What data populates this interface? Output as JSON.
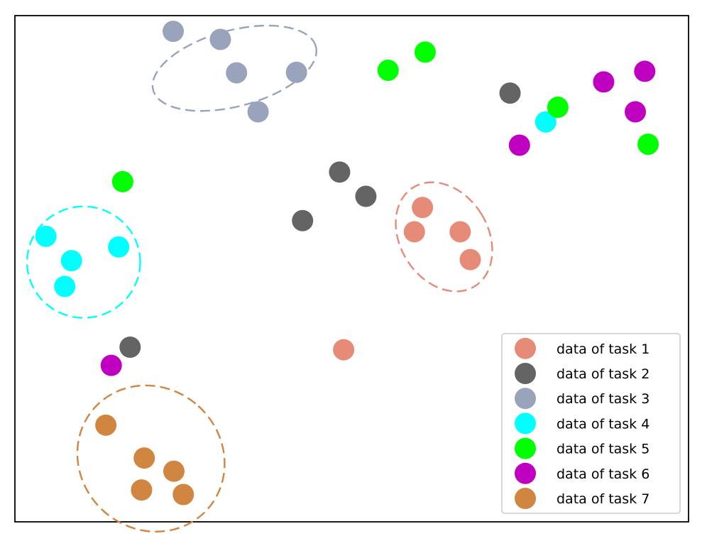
{
  "chart_data": {
    "type": "scatter",
    "title": "",
    "xlabel": "",
    "ylabel": "",
    "xlim": [
      0,
      100
    ],
    "ylim": [
      0,
      100
    ],
    "grid": false,
    "axis_ticks": false,
    "legend_position": "lower-right",
    "series": [
      {
        "name": "data of task 1",
        "color": "#e58b78",
        "points": [
          [
            60.5,
            62.1
          ],
          [
            59.3,
            57.3
          ],
          [
            66.1,
            57.3
          ],
          [
            67.6,
            51.8
          ],
          [
            48.8,
            34.0
          ]
        ]
      },
      {
        "name": "data of task 2",
        "color": "#646464",
        "points": [
          [
            73.5,
            84.7
          ],
          [
            48.2,
            69.1
          ],
          [
            52.1,
            64.3
          ],
          [
            42.7,
            59.5
          ],
          [
            17.1,
            34.5
          ]
        ]
      },
      {
        "name": "data of task 3",
        "color": "#9aa3bc",
        "points": [
          [
            23.5,
            96.9
          ],
          [
            30.5,
            95.3
          ],
          [
            32.9,
            88.7
          ],
          [
            41.8,
            88.8
          ],
          [
            36.1,
            81.0
          ]
        ]
      },
      {
        "name": "data of task 4",
        "color": "#00ffff",
        "points": [
          [
            78.8,
            79.0
          ],
          [
            4.6,
            56.4
          ],
          [
            15.4,
            54.3
          ],
          [
            8.4,
            51.6
          ],
          [
            7.4,
            46.5
          ]
        ]
      },
      {
        "name": "data of task 5",
        "color": "#00ff00",
        "points": [
          [
            60.9,
            92.8
          ],
          [
            55.4,
            89.2
          ],
          [
            80.6,
            81.9
          ],
          [
            94.0,
            74.6
          ],
          [
            16.0,
            67.2
          ]
        ]
      },
      {
        "name": "data of task 6",
        "color": "#c000c0",
        "points": [
          [
            93.5,
            89.0
          ],
          [
            87.4,
            86.9
          ],
          [
            92.1,
            81.0
          ],
          [
            74.9,
            74.4
          ],
          [
            14.3,
            30.9
          ]
        ]
      },
      {
        "name": "data of task 7",
        "color": "#d08540",
        "points": [
          [
            13.5,
            19.1
          ],
          [
            19.2,
            12.6
          ],
          [
            23.6,
            10.0
          ],
          [
            18.8,
            6.3
          ],
          [
            25.0,
            5.4
          ]
        ]
      }
    ],
    "cluster_outlines": [
      {
        "series": "data of task 3",
        "style": "dashed",
        "color": "#9aa3bc",
        "center": [
          32.6,
          89.6
        ],
        "rx": 12.5,
        "ry": 7.5,
        "angle_deg": -15
      },
      {
        "series": "data of task 4",
        "style": "dashed",
        "color": "#00ffff",
        "center": [
          10.2,
          51.3
        ],
        "rx": 8.4,
        "ry": 11.0,
        "angle_deg": 0
      },
      {
        "series": "data of task 1",
        "style": "dashed",
        "color": "#e58b78",
        "center": [
          63.7,
          56.3
        ],
        "rx": 6.5,
        "ry": 11.5,
        "angle_deg": -32
      },
      {
        "series": "data of task 7",
        "style": "dashed",
        "color": "#d08540",
        "center": [
          20.2,
          12.5
        ],
        "rx": 10.5,
        "ry": 15.0,
        "angle_deg": -48
      }
    ]
  }
}
